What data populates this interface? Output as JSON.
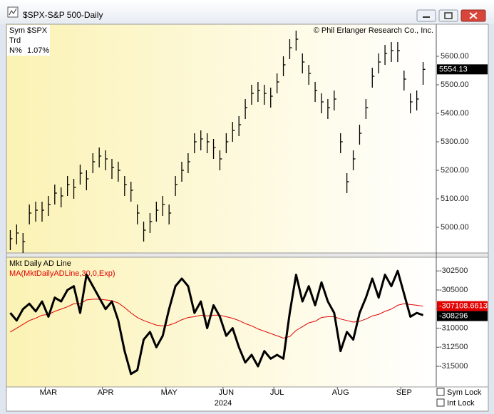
{
  "window": {
    "title": "$SPX-S&P 500-Daily",
    "copyright": "© Phil Erlanger Research Co., Inc.",
    "info": [
      [
        "Sym",
        "$SPX"
      ],
      [
        "Trd"
      ],
      [
        "N%",
        "1.07%"
      ]
    ],
    "checkboxes": [
      "Sym Lock",
      "Int Lock"
    ]
  },
  "chart_data": [
    {
      "type": "ohlc",
      "color": "#000000",
      "high": [
        4990,
        5010,
        4980,
        5080,
        5090,
        5090,
        5110,
        5150,
        5140,
        5180,
        5170,
        5220,
        5200,
        5260,
        5280,
        5270,
        5240,
        5230,
        5180,
        5160,
        5080,
        5020,
        5050,
        5090,
        5110,
        5080,
        5180,
        5230,
        5260,
        5330,
        5340,
        5330,
        5310,
        5270,
        5330,
        5370,
        5390,
        5450,
        5500,
        5510,
        5500,
        5490,
        5540,
        5600,
        5660,
        5690,
        5610,
        5570,
        5510,
        5470,
        5450,
        5480,
        5330,
        5190,
        5270,
        5360,
        5450,
        5560,
        5610,
        5640,
        5650,
        5650,
        5550,
        5470,
        5480,
        5580
      ],
      "low": [
        4920,
        4940,
        4910,
        5010,
        5020,
        5020,
        5040,
        5080,
        5070,
        5110,
        5100,
        5150,
        5130,
        5190,
        5210,
        5200,
        5170,
        5160,
        5110,
        5090,
        5010,
        4950,
        4980,
        5020,
        5040,
        5010,
        5110,
        5160,
        5190,
        5260,
        5270,
        5260,
        5240,
        5200,
        5260,
        5300,
        5320,
        5380,
        5430,
        5440,
        5430,
        5420,
        5470,
        5530,
        5590,
        5620,
        5540,
        5500,
        5440,
        5400,
        5380,
        5410,
        5260,
        5120,
        5200,
        5290,
        5380,
        5490,
        5540,
        5570,
        5580,
        5580,
        5480,
        5400,
        5410,
        5500
      ],
      "close": [
        4960,
        4980,
        4950,
        5050,
        5060,
        5060,
        5080,
        5120,
        5110,
        5150,
        5140,
        5190,
        5170,
        5230,
        5250,
        5240,
        5210,
        5200,
        5150,
        5130,
        5050,
        4990,
        5020,
        5060,
        5080,
        5050,
        5150,
        5200,
        5230,
        5300,
        5310,
        5300,
        5280,
        5240,
        5300,
        5340,
        5360,
        5420,
        5470,
        5480,
        5470,
        5460,
        5510,
        5570,
        5630,
        5660,
        5580,
        5540,
        5480,
        5440,
        5420,
        5450,
        5300,
        5160,
        5240,
        5330,
        5420,
        5530,
        5580,
        5610,
        5620,
        5620,
        5520,
        5440,
        5450,
        5554.13
      ],
      "ylim": [
        4910,
        5710
      ],
      "yticks": [
        {
          "value": 5000,
          "label": "5000.00"
        },
        {
          "value": 5100,
          "label": "5100.00"
        },
        {
          "value": 5200,
          "label": "5200.00"
        },
        {
          "value": 5300,
          "label": "5300.00"
        },
        {
          "value": 5400,
          "label": "5400.00"
        },
        {
          "value": 5500,
          "label": "5500.00"
        },
        {
          "value": 5600,
          "label": "5600.00"
        }
      ]
    },
    {
      "type": "line",
      "categories": [
        null,
        null,
        null,
        null,
        null,
        null,
        "MAR",
        null,
        null,
        null,
        null,
        null,
        null,
        null,
        null,
        "APR",
        null,
        null,
        null,
        null,
        null,
        null,
        null,
        null,
        null,
        "MAY",
        null,
        null,
        null,
        null,
        null,
        null,
        null,
        null,
        "JUN",
        null,
        null,
        null,
        null,
        null,
        null,
        null,
        "JUL",
        null,
        null,
        null,
        null,
        null,
        null,
        null,
        null,
        null,
        "AUG",
        null,
        null,
        null,
        null,
        null,
        null,
        null,
        null,
        null,
        "SEP",
        null,
        null,
        null
      ],
      "xlabel": "2024",
      "series": [
        {
          "name": "Mkt Daily AD Line",
          "color": "#000000",
          "values": [
            -308000,
            -309000,
            -307500,
            -306800,
            -307800,
            -306500,
            -308500,
            -306000,
            -306500,
            -305000,
            -304500,
            -308000,
            -303000,
            -304500,
            -306000,
            -307500,
            -306500,
            -309000,
            -313000,
            -316000,
            -315500,
            -311500,
            -310500,
            -312500,
            -311000,
            -307500,
            -304500,
            -303500,
            -304500,
            -308000,
            -306500,
            -310000,
            -307000,
            -308500,
            -311000,
            -310000,
            -312500,
            -314500,
            -313500,
            -315000,
            -313000,
            -314000,
            -313500,
            -314000,
            -308000,
            -303000,
            -306500,
            -304500,
            -307000,
            -304000,
            -306500,
            -308000,
            -313000,
            -310500,
            -311500,
            -308000,
            -306000,
            -303500,
            -306000,
            -303000,
            -304500,
            -302500,
            -305500,
            -308500,
            -308000,
            -308296
          ]
        },
        {
          "name": "MA(MktDailyADLine,30,0,Exp)",
          "color": "#e00000",
          "values": [
            -310500,
            -310000,
            -309500,
            -309000,
            -308700,
            -308300,
            -308200,
            -307800,
            -307500,
            -307200,
            -306800,
            -306800,
            -306300,
            -306200,
            -306200,
            -306300,
            -306400,
            -306700,
            -307300,
            -308000,
            -308600,
            -309000,
            -309300,
            -309600,
            -309700,
            -309600,
            -309300,
            -308900,
            -308600,
            -308500,
            -308300,
            -308400,
            -308300,
            -308300,
            -308500,
            -308700,
            -309000,
            -309400,
            -309700,
            -310100,
            -310400,
            -310700,
            -311000,
            -311300,
            -311100,
            -310300,
            -309800,
            -309300,
            -309100,
            -308600,
            -308500,
            -308500,
            -308800,
            -309000,
            -309200,
            -309100,
            -308800,
            -308400,
            -308200,
            -307800,
            -307500,
            -307000,
            -306800,
            -306900,
            -307000,
            -307108.6613
          ]
        }
      ],
      "ylim": [
        -317700,
        -300800
      ],
      "yticks": [
        -302500,
        -305000,
        -307500,
        -310000,
        -312500,
        -315000
      ]
    }
  ]
}
